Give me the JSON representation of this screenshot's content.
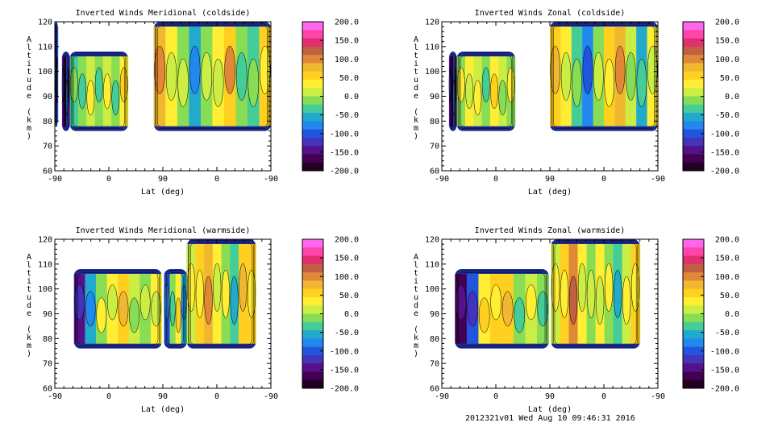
{
  "footer": "2012321v01 Wed Aug 10 09:46:31 2016",
  "colorbar": {
    "ticks": [
      "200.0",
      "150.0",
      "100.0",
      "50.0",
      "0.0",
      "-50.0",
      "-100.0",
      "-150.0",
      "-200.0"
    ],
    "colors": [
      "#ff66ee",
      "#ff44aa",
      "#e03070",
      "#c06040",
      "#e08838",
      "#f0b830",
      "#ffd020",
      "#ffee33",
      "#ccee44",
      "#88dd55",
      "#44cc99",
      "#22aacc",
      "#2288ee",
      "#2255dd",
      "#4433bb",
      "#551188",
      "#440055",
      "#220022"
    ]
  },
  "chart_data": [
    {
      "type": "heatmap",
      "title": "Inverted Winds Meridional (coldside)",
      "xlabel": "Lat (deg)",
      "ylabel": "Altitude (km)",
      "x_tick_labels": [
        "-90",
        "0",
        "90",
        "0",
        "-90"
      ],
      "y_tick_labels": [
        "60",
        "70",
        "80",
        "90",
        "100",
        "110",
        "120"
      ],
      "ylim": [
        60,
        120
      ],
      "value_range": [
        -200,
        200
      ],
      "regions": [
        {
          "x0": -90,
          "x1": -85,
          "y0": 78,
          "y1": 120,
          "values": [
            -150,
            -200,
            -100
          ]
        },
        {
          "x0": -78,
          "x1": -65,
          "y0": 76,
          "y1": 108,
          "values": [
            -150,
            -200,
            -100,
            -150
          ]
        },
        {
          "x0": -65,
          "x1": 32,
          "y0": 76,
          "y1": 108,
          "values": [
            -30,
            0,
            20,
            -10,
            10,
            -20,
            40
          ]
        },
        {
          "x0": 75,
          "x1": 270,
          "y0": 76,
          "y1": 120,
          "values": [
            80,
            30,
            -20,
            -60,
            -10,
            40,
            70,
            0,
            -40,
            50
          ]
        }
      ]
    },
    {
      "type": "heatmap",
      "title": "Inverted Winds Zonal (coldside)",
      "xlabel": "Lat (deg)",
      "ylabel": "Altitude (km)",
      "x_tick_labels": [
        "-90",
        "0",
        "90",
        "0",
        "-90"
      ],
      "y_tick_labels": [
        "60",
        "70",
        "80",
        "90",
        "100",
        "110",
        "120"
      ],
      "ylim": [
        60,
        120
      ],
      "value_range": [
        -200,
        200
      ],
      "regions": [
        {
          "x0": -78,
          "x1": -65,
          "y0": 76,
          "y1": 108,
          "values": [
            -150,
            -200,
            -100,
            -180
          ]
        },
        {
          "x0": -65,
          "x1": 32,
          "y0": 76,
          "y1": 108,
          "values": [
            0,
            30,
            10,
            -20,
            40,
            20,
            0
          ]
        },
        {
          "x0": 90,
          "x1": 270,
          "y0": 76,
          "y1": 120,
          "values": [
            60,
            30,
            -40,
            -80,
            -20,
            50,
            80,
            10,
            -50,
            30
          ]
        }
      ]
    },
    {
      "type": "heatmap",
      "title": "Inverted Winds Meridional (warmside)",
      "xlabel": "Lat (deg)",
      "ylabel": "Altitude (km)",
      "x_tick_labels": [
        "-90",
        "0",
        "90",
        "0",
        "-90"
      ],
      "y_tick_labels": [
        "60",
        "70",
        "80",
        "90",
        "100",
        "110",
        "120"
      ],
      "ylim": [
        60,
        120
      ],
      "value_range": [
        -200,
        200
      ],
      "regions": [
        {
          "x0": -58,
          "x1": 88,
          "y0": 76,
          "y1": 108,
          "values": [
            -150,
            -50,
            0,
            40,
            60,
            20,
            -10,
            30
          ]
        },
        {
          "x0": 92,
          "x1": 130,
          "y0": 76,
          "y1": 108,
          "values": [
            -100,
            0,
            30,
            -50
          ]
        },
        {
          "x0": 130,
          "x1": 245,
          "y0": 76,
          "y1": 120,
          "values": [
            20,
            60,
            80,
            40,
            0,
            -30,
            50,
            70
          ]
        }
      ]
    },
    {
      "type": "heatmap",
      "title": "Inverted Winds Zonal (warmside)",
      "xlabel": "Lat (deg)",
      "ylabel": "Altitude (km)",
      "x_tick_labels": [
        "-90",
        "0",
        "90",
        "0",
        "-90"
      ],
      "y_tick_labels": [
        "60",
        "70",
        "80",
        "90",
        "100",
        "110",
        "120"
      ],
      "ylim": [
        60,
        120
      ],
      "value_range": [
        -200,
        200
      ],
      "regions": [
        {
          "x0": -68,
          "x1": 88,
          "y0": 76,
          "y1": 108,
          "values": [
            -180,
            -100,
            40,
            70,
            50,
            0,
            20,
            -20
          ]
        },
        {
          "x0": 92,
          "x1": 240,
          "y0": 76,
          "y1": 120,
          "values": [
            10,
            60,
            110,
            40,
            -20,
            30,
            0,
            -40,
            20,
            50
          ]
        }
      ]
    }
  ]
}
